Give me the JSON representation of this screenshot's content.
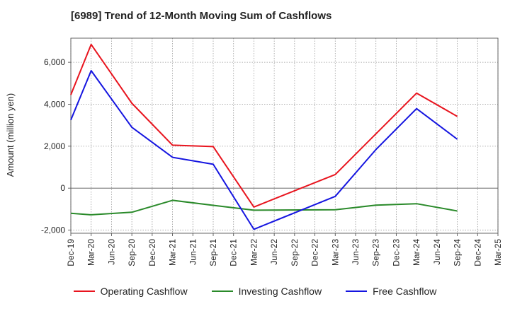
{
  "title": "[6989]  Trend of 12-Month Moving Sum of Cashflows",
  "chart_data": {
    "type": "line",
    "title": "[6989]  Trend of 12-Month Moving Sum of Cashflows",
    "xlabel": "",
    "ylabel": "Amount (million yen)",
    "categories": [
      "Dec-19",
      "Mar-20",
      "Jun-20",
      "Sep-20",
      "Dec-20",
      "Mar-21",
      "Jun-21",
      "Sep-21",
      "Dec-21",
      "Mar-22",
      "Jun-22",
      "Sep-22",
      "Dec-22",
      "Mar-23",
      "Jun-23",
      "Sep-23",
      "Dec-23",
      "Mar-24",
      "Jun-24",
      "Sep-24",
      "Dec-24",
      "Mar-25"
    ],
    "yticks": [
      -2000,
      0,
      2000,
      4000,
      6000
    ],
    "ytick_labels": [
      "-2,000",
      "0",
      "2,000",
      "4,000",
      "6,000"
    ],
    "ylim": [
      -2150,
      7150
    ],
    "grid": true,
    "legend_position": "bottom",
    "series": [
      {
        "name": "Operating Cashflow",
        "color": "#e8141e",
        "values": [
          4450,
          6850,
          null,
          4050,
          null,
          2050,
          null,
          1980,
          null,
          -900,
          null,
          null,
          null,
          650,
          null,
          null,
          null,
          4530,
          null,
          3420,
          null,
          null
        ]
      },
      {
        "name": "Investing Cashflow",
        "color": "#2a8a2a",
        "values": [
          -1200,
          -1270,
          null,
          -1150,
          null,
          -580,
          null,
          -820,
          null,
          -1050,
          null,
          null,
          null,
          -1030,
          null,
          -810,
          null,
          -740,
          null,
          -1090,
          null,
          null
        ]
      },
      {
        "name": "Free Cashflow",
        "color": "#1515e0",
        "values": [
          3250,
          5600,
          null,
          2900,
          null,
          1470,
          null,
          1140,
          null,
          -1960,
          null,
          null,
          null,
          -390,
          null,
          1840,
          null,
          3790,
          null,
          2330,
          null,
          null
        ]
      }
    ]
  }
}
